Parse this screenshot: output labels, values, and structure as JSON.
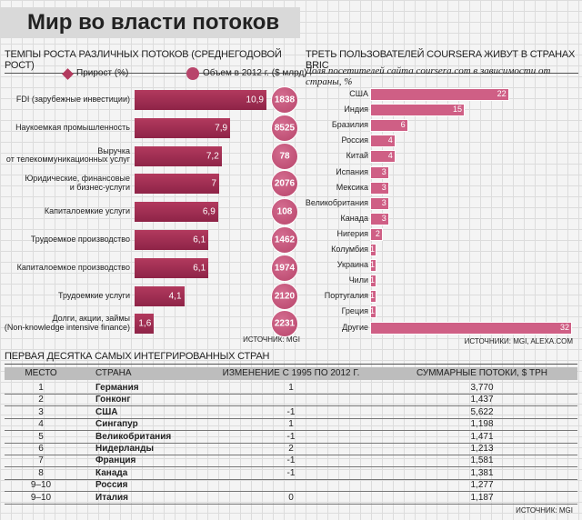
{
  "title": "Мир во власти потоков",
  "chart_data": [
    {
      "type": "bar",
      "title": "ТЕМПЫ РОСТА РАЗЛИЧНЫХ ПОТОКОВ (СРЕДНЕГОДОВОЙ РОСТ)",
      "orientation": "horizontal",
      "categories": [
        "FDI (зарубежные инвестиции)",
        "Наукоемкая промышленность",
        "Выручка\nот телекоммуникационных услуг",
        "Юридические, финансовые\nи бизнес-услуги",
        "Капиталоемкие услуги",
        "Трудоемкое производство",
        "Капиталоемкое производство",
        "Трудоемкие услуги",
        "Долги, акции, займы\n(Non-knowledge intensive finance)"
      ],
      "series": [
        {
          "name": "Прирост (%)",
          "color": "#b23a5e",
          "values": [
            10.9,
            7.9,
            7.2,
            7,
            6.9,
            6.1,
            6.1,
            4.1,
            1.6
          ],
          "value_labels": [
            "10,9",
            "7,9",
            "7,2",
            "7",
            "6,9",
            "6,1",
            "6,1",
            "4,1",
            "1,6"
          ]
        },
        {
          "name": "Объем в 2012 г. ($ млрд)",
          "color": "#b8456b",
          "values": [
            1838,
            8525,
            78,
            2076,
            108,
            1462,
            1974,
            2120,
            2231
          ]
        }
      ],
      "source": "ИСТОЧНИК: MGI"
    },
    {
      "type": "bar",
      "title": "ТРЕТЬ ПОЛЬЗОВАТЕЛЕЙ COURSERA ЖИВУТ В СТРАНАХ BRIC",
      "orientation": "horizontal",
      "subtitle": "Доля посетителей сайта coursera.com в зависимости от страны, %",
      "categories": [
        "США",
        "Индия",
        "Бразилия",
        "Россия",
        "Китай",
        "Испания",
        "Мексика",
        "Великобритания",
        "Канада",
        "Нигерия",
        "Колумбия",
        "Украина",
        "Чили",
        "Португалия",
        "Греция",
        "Другие"
      ],
      "values": [
        22,
        15,
        6,
        4,
        4,
        3,
        3,
        3,
        3,
        2,
        1,
        1,
        1,
        1,
        1,
        32
      ],
      "color": "#cf5f85",
      "source": "ИСТОЧНИКИ: MGI, ALEXA.COM"
    }
  ],
  "table": {
    "title": "ПЕРВАЯ ДЕСЯТКА САМЫХ ИНТЕГРИРОВАННЫХ СТРАН",
    "header": [
      "МЕСТО",
      "СТРАНА",
      "ИЗМЕНЕНИЕ С 1995 ПО 2012 Г.",
      "СУММАРНЫЕ ПОТОКИ, $ ТРН"
    ],
    "rows": [
      [
        "1",
        "Германия",
        "1",
        "3,770"
      ],
      [
        "2",
        "Гонконг",
        null,
        "1,437"
      ],
      [
        "3",
        "США",
        "-1",
        "5,622"
      ],
      [
        "4",
        "Сингапур",
        "1",
        "1,198"
      ],
      [
        "5",
        "Великобритания",
        "-1",
        "1,471"
      ],
      [
        "6",
        "Нидерланды",
        "2",
        "1,213"
      ],
      [
        "7",
        "Франция",
        "-1",
        "1,581"
      ],
      [
        "8",
        "Канада",
        "-1",
        "1,381"
      ],
      [
        "9–10",
        "Россия",
        null,
        "1,277"
      ],
      [
        "9–10",
        "Италия",
        "0",
        "1,187"
      ]
    ],
    "source": "ИСТОЧНИК: MGI"
  }
}
